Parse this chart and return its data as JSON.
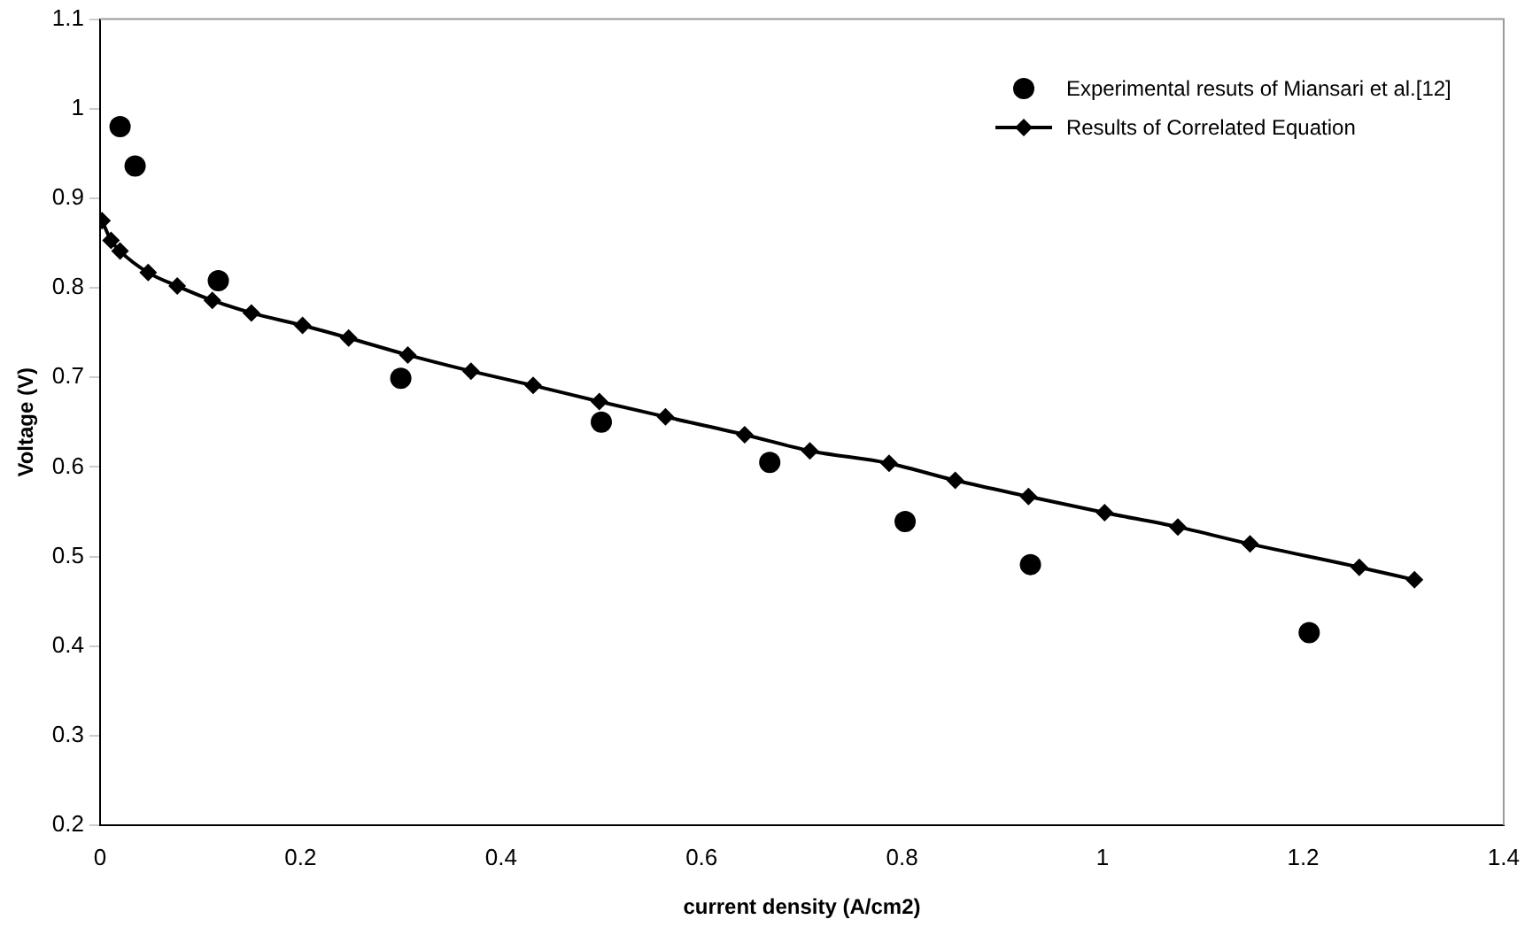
{
  "chart_data": {
    "type": "scatter",
    "xlabel": "current density (A/cm2)",
    "ylabel": "Voltage (V)",
    "xlim": [
      0,
      1.4
    ],
    "xticks": [
      0,
      0.2,
      0.4,
      0.6,
      0.8,
      1,
      1.2,
      1.4
    ],
    "ylim": [
      0.2,
      1.1
    ],
    "yticks": [
      0.2,
      0.3,
      0.4,
      0.5,
      0.6,
      0.7,
      0.8,
      0.9,
      1,
      1.1
    ],
    "grid": false,
    "legend": "top right",
    "series": [
      {
        "name": "Experimental resuts of Miansari et al.[12]",
        "type": "scatter",
        "marker": "circle",
        "color": "#000000",
        "x": [
          0.02,
          0.035,
          0.118,
          0.3,
          0.5,
          0.668,
          0.803,
          0.928,
          1.206
        ],
        "values": [
          0.98,
          0.936,
          0.808,
          0.699,
          0.65,
          0.605,
          0.539,
          0.491,
          0.415
        ]
      },
      {
        "name": "Results of Correlated Equation",
        "type": "line",
        "marker": "diamond",
        "line_style": "solid",
        "color": "#000000",
        "x": [
          0.002,
          0.011,
          0.02,
          0.048,
          0.077,
          0.112,
          0.151,
          0.202,
          0.248,
          0.307,
          0.37,
          0.432,
          0.498,
          0.564,
          0.643,
          0.708,
          0.787,
          0.853,
          0.926,
          1.002,
          1.075,
          1.147,
          1.256,
          1.311
        ],
        "values": [
          0.875,
          0.853,
          0.841,
          0.817,
          0.802,
          0.786,
          0.772,
          0.758,
          0.744,
          0.725,
          0.707,
          0.691,
          0.673,
          0.656,
          0.636,
          0.618,
          0.604,
          0.585,
          0.567,
          0.549,
          0.533,
          0.514,
          0.488,
          0.474
        ]
      }
    ]
  }
}
